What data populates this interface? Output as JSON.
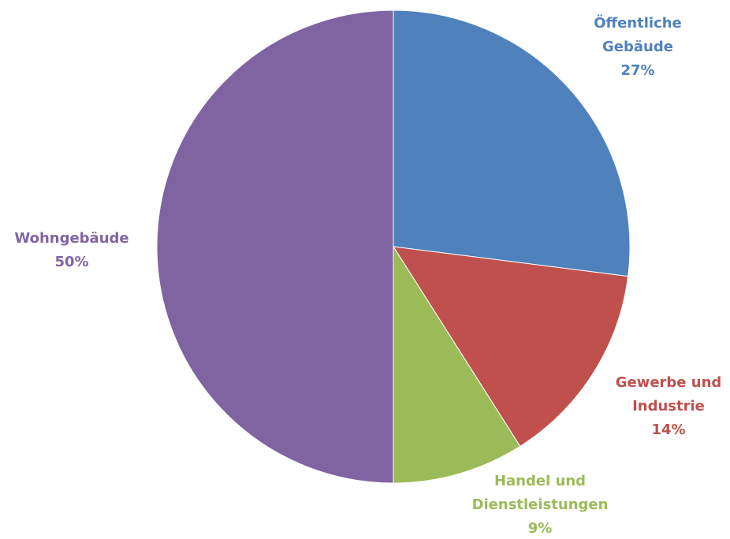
{
  "chart_data": {
    "type": "pie",
    "title": "",
    "slices": [
      {
        "label_lines": [
          "Öffentliche",
          "Gebäude"
        ],
        "percent_label": "27%",
        "value": 27,
        "color": "#4f81bd"
      },
      {
        "label_lines": [
          "Gewerbe und",
          "Industrie"
        ],
        "percent_label": "14%",
        "value": 14,
        "color": "#c0504d"
      },
      {
        "label_lines": [
          "Handel und",
          "Dienstleistungen"
        ],
        "percent_label": "9%",
        "value": 9,
        "color": "#9bbb59"
      },
      {
        "label_lines": [
          "Wohngebäude"
        ],
        "percent_label": "50%",
        "value": 50,
        "color": "#8064a2"
      }
    ],
    "start_angle": "12 o'clock",
    "direction": "clockwise",
    "legend": "none, labels outside slices"
  }
}
